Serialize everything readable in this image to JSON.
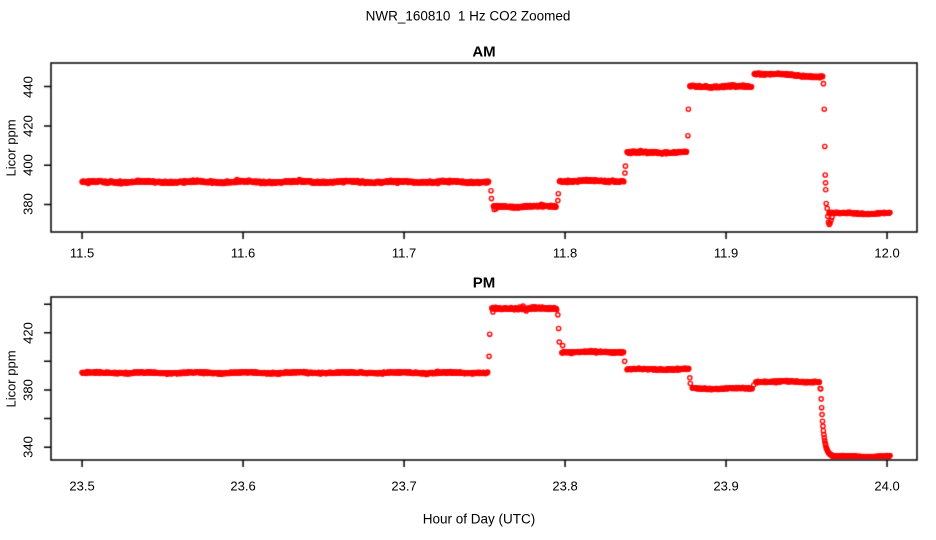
{
  "title": "NWR_160810  1 Hz CO2 Zoomed",
  "xlabel": "Hour of Day (UTC)",
  "colors": {
    "points": "#ff0000",
    "axis": "#000000",
    "background": "#ffffff"
  },
  "chart_data": [
    {
      "type": "scatter",
      "panel": "AM",
      "title": "AM",
      "ylabel": "Licor ppm",
      "marker": "open-circle",
      "sample_rate_hz": 1,
      "grid": false,
      "xlim": [
        11.4807,
        12.0186
      ],
      "ylim": [
        366,
        452
      ],
      "xticks": [
        11.5,
        11.6,
        11.7,
        11.8,
        11.9,
        12.0
      ],
      "xtick_labels": [
        "11.5",
        "11.6",
        "11.7",
        "11.8",
        "11.9",
        "12.0"
      ],
      "yticks": [
        380,
        400,
        420,
        440
      ],
      "ytick_labels": [
        "380",
        "400",
        "420",
        "440"
      ],
      "segments": [
        {
          "x0": 11.5,
          "x1": 11.7525,
          "v": 391.5,
          "noise": 0.8
        },
        {
          "x0": 11.7555,
          "x1": 11.7945,
          "v": 379.0,
          "noise": 0.8
        },
        {
          "x0": 11.7965,
          "x1": 11.8365,
          "v": 392.0,
          "noise": 0.7
        },
        {
          "x0": 11.8385,
          "x1": 11.8755,
          "v": 406.5,
          "noise": 0.7
        },
        {
          "x0": 11.8775,
          "x1": 11.916,
          "v": 440.0,
          "noise": 0.7
        },
        {
          "x0": 11.9175,
          "x1": 11.96,
          "v": 446.8,
          "v1": 445.0,
          "noise": 0.6
        },
        {
          "x0": 11.964,
          "x1": 12.002,
          "v": 375.5,
          "noise": 0.6
        }
      ],
      "extra_points": [
        [
          11.754,
          387.0
        ],
        [
          11.7543,
          383.0
        ],
        [
          11.756,
          377.5
        ],
        [
          11.7572,
          377.8
        ],
        [
          11.7955,
          382.0
        ],
        [
          11.7958,
          385.5
        ],
        [
          11.8372,
          396.0
        ],
        [
          11.8375,
          399.5
        ],
        [
          11.8763,
          415.0
        ],
        [
          11.8766,
          428.5
        ],
        [
          11.9605,
          441.5
        ],
        [
          11.961,
          428.5
        ],
        [
          11.9613,
          409.5
        ],
        [
          11.9616,
          395.0
        ],
        [
          11.9618,
          391.0
        ],
        [
          11.9619,
          387.5
        ],
        [
          11.9622,
          380.5
        ],
        [
          11.9628,
          378.0
        ],
        [
          11.9632,
          374.0
        ],
        [
          11.9636,
          371.0
        ],
        [
          11.9641,
          369.8
        ],
        [
          11.9646,
          370.5
        ],
        [
          11.9652,
          372.0
        ],
        [
          11.9658,
          373.5
        ]
      ]
    },
    {
      "type": "scatter",
      "panel": "PM",
      "title": "PM",
      "ylabel": "Licor ppm",
      "marker": "open-circle",
      "sample_rate_hz": 1,
      "grid": false,
      "xlim": [
        23.4807,
        24.0186
      ],
      "ylim": [
        331,
        445
      ],
      "xticks": [
        23.5,
        23.6,
        23.7,
        23.8,
        23.9,
        24.0
      ],
      "xtick_labels": [
        "23.5",
        "23.6",
        "23.7",
        "23.8",
        "23.9",
        "24.0"
      ],
      "yticks": [
        340,
        360,
        380,
        400,
        420,
        440
      ],
      "ytick_labels": [
        "340",
        "",
        "380",
        "",
        "420",
        ""
      ],
      "segments": [
        {
          "x0": 23.5,
          "x1": 23.752,
          "v": 392.0,
          "noise": 0.8
        },
        {
          "x0": 23.7545,
          "x1": 23.795,
          "v": 437.0,
          "noise": 1.1
        },
        {
          "x0": 23.798,
          "x1": 23.8365,
          "v": 406.5,
          "noise": 0.8
        },
        {
          "x0": 23.8385,
          "x1": 23.877,
          "v": 394.5,
          "noise": 0.7
        },
        {
          "x0": 23.879,
          "x1": 23.9165,
          "v": 381.0,
          "noise": 0.7
        },
        {
          "x0": 23.9185,
          "x1": 23.958,
          "v": 385.8,
          "noise": 0.7
        },
        {
          "x0": 23.966,
          "x1": 24.002,
          "v": 333.5,
          "noise": 0.5
        }
      ],
      "extra_points": [
        [
          23.7528,
          403.5
        ],
        [
          23.7532,
          419.0
        ],
        [
          23.7552,
          434.5
        ],
        [
          23.7955,
          432.5
        ],
        [
          23.796,
          423.0
        ],
        [
          23.7964,
          413.5
        ],
        [
          23.7985,
          411.0
        ],
        [
          23.837,
          400.0
        ],
        [
          23.8775,
          388.5
        ],
        [
          23.8778,
          384.5
        ],
        [
          23.9172,
          383.5
        ],
        [
          23.9585,
          381.0
        ]
      ],
      "decay": {
        "x0": 23.9588,
        "x1": 23.9665,
        "from": 381.0,
        "to": 333.5,
        "tau": 0.0017
      }
    }
  ]
}
